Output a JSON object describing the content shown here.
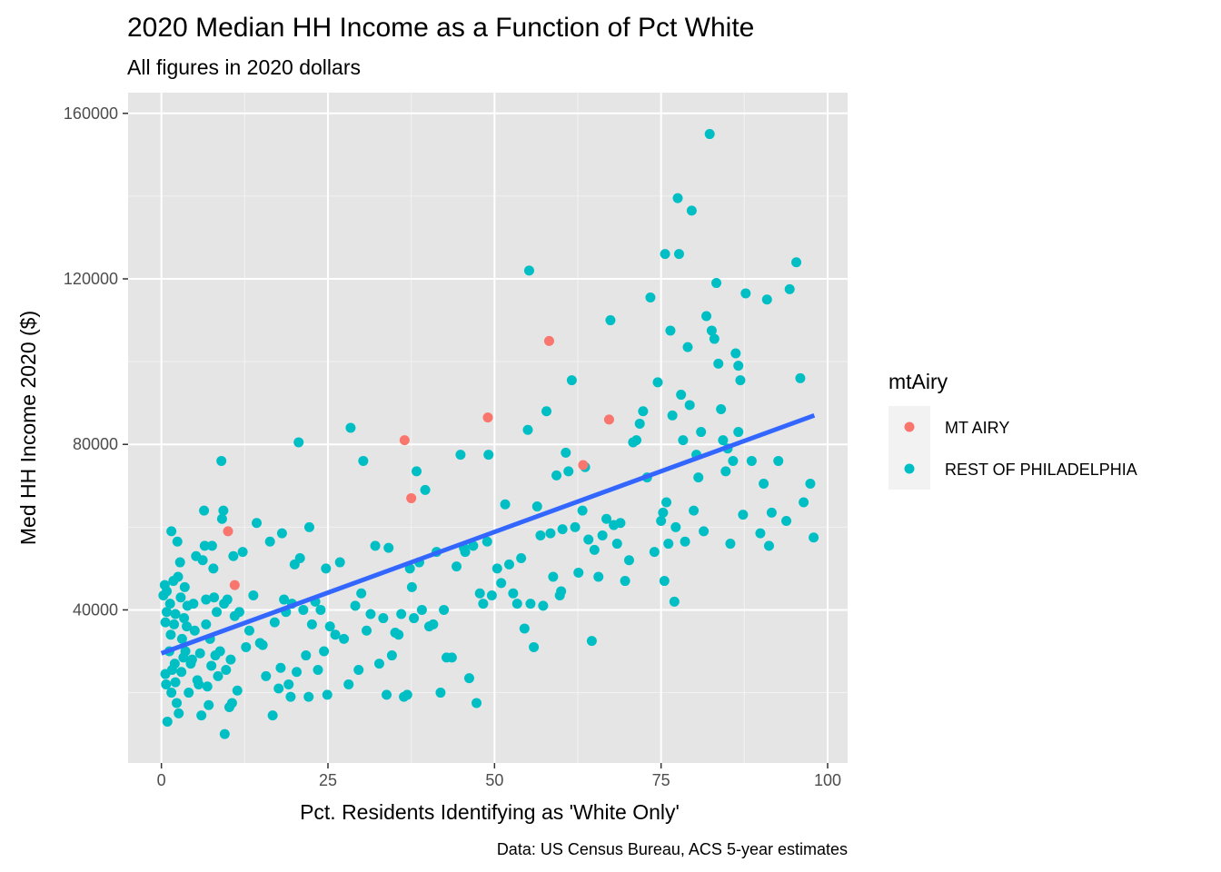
{
  "chart_data": {
    "type": "scatter",
    "title": "2020 Median HH Income as a Function of Pct White",
    "subtitle": "All figures in 2020 dollars",
    "xlabel": "Pct. Residents Identifying as 'White Only'",
    "ylabel": "Med HH Income 2020 ($)",
    "caption": "Data: US Census Bureau, ACS 5-year estimates",
    "xlim": [
      -5,
      103
    ],
    "ylim": [
      3000,
      165000
    ],
    "x_ticks": [
      0,
      25,
      50,
      75,
      100
    ],
    "x_tick_labels": [
      "0",
      "25",
      "50",
      "75",
      "100"
    ],
    "y_ticks": [
      40000,
      80000,
      120000,
      160000
    ],
    "y_tick_labels": [
      "40000",
      "80000",
      "120000",
      "160000"
    ],
    "grid": true,
    "panel_background": "#e5e5e5",
    "legend": {
      "title": "mtAiry",
      "position": "right",
      "entries": [
        {
          "label": "MT AIRY",
          "color": "#f8766d"
        },
        {
          "label": "REST OF PHILADELPHIA",
          "color": "#00bfc4"
        }
      ]
    },
    "trend_line": {
      "color": "#3366ff",
      "x": [
        0,
        98
      ],
      "y": [
        29500,
        87000
      ]
    },
    "series": [
      {
        "name": "MT AIRY",
        "color": "#f8766d",
        "points": [
          [
            10,
            59000
          ],
          [
            11,
            46000
          ],
          [
            36.5,
            81000
          ],
          [
            37.5,
            67000
          ],
          [
            49,
            86500
          ],
          [
            58.2,
            105000
          ],
          [
            63.3,
            75000
          ],
          [
            67.2,
            86000
          ]
        ]
      },
      {
        "name": "REST OF PHILADELPHIA",
        "color": "#00bfc4",
        "points": [
          [
            0.3,
            43500
          ],
          [
            0.5,
            46000
          ],
          [
            0.6,
            37000
          ],
          [
            0.8,
            39500
          ],
          [
            0.8,
            44500
          ],
          [
            0.6,
            24500
          ],
          [
            0.7,
            22000
          ],
          [
            0.9,
            13000
          ],
          [
            1.2,
            30000
          ],
          [
            1.3,
            41500
          ],
          [
            1.4,
            34000
          ],
          [
            1.5,
            20000
          ],
          [
            1.5,
            59000
          ],
          [
            1.6,
            25500
          ],
          [
            1.8,
            47000
          ],
          [
            1.9,
            36500
          ],
          [
            2.0,
            27000
          ],
          [
            2.1,
            39000
          ],
          [
            2.1,
            22500
          ],
          [
            2.3,
            17500
          ],
          [
            2.4,
            56500
          ],
          [
            2.6,
            15000
          ],
          [
            2.5,
            48000
          ],
          [
            2.8,
            51500
          ],
          [
            2.9,
            43000
          ],
          [
            3.0,
            25000
          ],
          [
            3.1,
            33000
          ],
          [
            3.3,
            28500
          ],
          [
            3.4,
            38000
          ],
          [
            3.6,
            30000
          ],
          [
            3.8,
            36000
          ],
          [
            3.9,
            41000
          ],
          [
            4.1,
            20000
          ],
          [
            4.4,
            27000
          ],
          [
            4.6,
            28000
          ],
          [
            4.8,
            41500
          ],
          [
            5.0,
            35000
          ],
          [
            5.2,
            53000
          ],
          [
            5.4,
            23000
          ],
          [
            5.6,
            22000
          ],
          [
            5.8,
            29500
          ],
          [
            6.0,
            14500
          ],
          [
            6.2,
            52000
          ],
          [
            6.4,
            64000
          ],
          [
            6.5,
            55500
          ],
          [
            6.7,
            42500
          ],
          [
            6.9,
            21500
          ],
          [
            7.1,
            17000
          ],
          [
            7.3,
            33000
          ],
          [
            7.5,
            26500
          ],
          [
            7.6,
            55500
          ],
          [
            7.8,
            50000
          ],
          [
            7.9,
            43000
          ],
          [
            8.1,
            29000
          ],
          [
            8.3,
            39500
          ],
          [
            8.5,
            24000
          ],
          [
            8.8,
            30000
          ],
          [
            9.0,
            76000
          ],
          [
            9.1,
            62000
          ],
          [
            9.3,
            64000
          ],
          [
            9.4,
            41500
          ],
          [
            9.5,
            10000
          ],
          [
            9.7,
            25500
          ],
          [
            9.9,
            42500
          ],
          [
            10.2,
            16500
          ],
          [
            10.4,
            28000
          ],
          [
            10.6,
            17500
          ],
          [
            10.8,
            53000
          ],
          [
            11.0,
            38500
          ],
          [
            11.4,
            20500
          ],
          [
            11.7,
            39500
          ],
          [
            12.2,
            54000
          ],
          [
            12.7,
            31000
          ],
          [
            13.2,
            35000
          ],
          [
            13.8,
            43500
          ],
          [
            14.3,
            61000
          ],
          [
            14.8,
            32000
          ],
          [
            15.2,
            31500
          ],
          [
            15.7,
            24000
          ],
          [
            16.3,
            56500
          ],
          [
            16.7,
            14500
          ],
          [
            17.0,
            37000
          ],
          [
            17.6,
            21000
          ],
          [
            17.9,
            26000
          ],
          [
            18.1,
            58500
          ],
          [
            18.4,
            42500
          ],
          [
            18.7,
            39500
          ],
          [
            19.1,
            22000
          ],
          [
            19.4,
            19000
          ],
          [
            19.6,
            41500
          ],
          [
            20.0,
            51000
          ],
          [
            20.3,
            25000
          ],
          [
            20.6,
            80500
          ],
          [
            20.8,
            52500
          ],
          [
            21.3,
            40000
          ],
          [
            21.7,
            29000
          ],
          [
            22.1,
            19000
          ],
          [
            22.2,
            60000
          ],
          [
            22.6,
            36500
          ],
          [
            23.1,
            42000
          ],
          [
            23.5,
            25500
          ],
          [
            23.9,
            40000
          ],
          [
            24.4,
            30000
          ],
          [
            24.7,
            50000
          ],
          [
            24.9,
            19500
          ],
          [
            25.3,
            36000
          ],
          [
            26.1,
            34000
          ],
          [
            26.8,
            51500
          ],
          [
            27.4,
            33000
          ],
          [
            28.1,
            22000
          ],
          [
            28.4,
            84000
          ],
          [
            29.1,
            41000
          ],
          [
            29.6,
            25500
          ],
          [
            30.3,
            76000
          ],
          [
            30.8,
            35000
          ],
          [
            31.4,
            39000
          ],
          [
            32.1,
            55500
          ],
          [
            32.7,
            27000
          ],
          [
            33.3,
            38000
          ],
          [
            33.8,
            19500
          ],
          [
            34.1,
            55000
          ],
          [
            34.6,
            29000
          ],
          [
            35.1,
            34500
          ],
          [
            35.6,
            34000
          ],
          [
            36.0,
            39000
          ],
          [
            36.4,
            19000
          ],
          [
            36.9,
            19500
          ],
          [
            37.3,
            50000
          ],
          [
            37.6,
            45500
          ],
          [
            37.9,
            38000
          ],
          [
            38.3,
            73500
          ],
          [
            38.7,
            51500
          ],
          [
            39.1,
            40000
          ],
          [
            39.6,
            69000
          ],
          [
            40.2,
            36000
          ],
          [
            40.8,
            36500
          ],
          [
            41.3,
            54000
          ],
          [
            41.9,
            20000
          ],
          [
            42.4,
            40000
          ],
          [
            42.8,
            28500
          ],
          [
            43.6,
            28500
          ],
          [
            44.3,
            50500
          ],
          [
            44.9,
            77500
          ],
          [
            45.6,
            54000
          ],
          [
            46.2,
            23500
          ],
          [
            46.8,
            55500
          ],
          [
            47.3,
            17500
          ],
          [
            47.8,
            44000
          ],
          [
            48.3,
            41500
          ],
          [
            48.9,
            56500
          ],
          [
            49.1,
            77500
          ],
          [
            49.6,
            43500
          ],
          [
            50.4,
            50000
          ],
          [
            51.0,
            46500
          ],
          [
            51.6,
            65500
          ],
          [
            52.2,
            51000
          ],
          [
            52.8,
            44000
          ],
          [
            53.4,
            41500
          ],
          [
            54.0,
            52500
          ],
          [
            54.5,
            35500
          ],
          [
            55.0,
            83500
          ],
          [
            55.4,
            41500
          ],
          [
            55.9,
            31000
          ],
          [
            56.4,
            65000
          ],
          [
            56.9,
            58000
          ],
          [
            57.3,
            41000
          ],
          [
            57.8,
            88000
          ],
          [
            58.4,
            58500
          ],
          [
            58.8,
            48000
          ],
          [
            59.3,
            72500
          ],
          [
            59.8,
            43500
          ],
          [
            60.2,
            59500
          ],
          [
            60.7,
            78000
          ],
          [
            61.1,
            73500
          ],
          [
            61.6,
            95500
          ],
          [
            62.1,
            60000
          ],
          [
            62.6,
            49000
          ],
          [
            63.2,
            64000
          ],
          [
            63.6,
            74500
          ],
          [
            64.1,
            57000
          ],
          [
            64.6,
            32500
          ],
          [
            65.0,
            54500
          ],
          [
            65.6,
            48000
          ],
          [
            66.2,
            58000
          ],
          [
            66.8,
            62000
          ],
          [
            67.4,
            110000
          ],
          [
            67.9,
            60500
          ],
          [
            68.4,
            56000
          ],
          [
            68.9,
            61000
          ],
          [
            69.6,
            47000
          ],
          [
            70.2,
            52000
          ],
          [
            70.8,
            80500
          ],
          [
            71.3,
            81000
          ],
          [
            71.8,
            85000
          ],
          [
            72.3,
            88000
          ],
          [
            72.9,
            72000
          ],
          [
            73.4,
            115500
          ],
          [
            74.0,
            54000
          ],
          [
            74.5,
            95000
          ],
          [
            75.0,
            61500
          ],
          [
            75.3,
            63500
          ],
          [
            75.5,
            47000
          ],
          [
            75.8,
            66000
          ],
          [
            76.1,
            56000
          ],
          [
            76.4,
            107500
          ],
          [
            76.7,
            87000
          ],
          [
            77.0,
            42000
          ],
          [
            77.2,
            60000
          ],
          [
            77.5,
            139500
          ],
          [
            77.7,
            126000
          ],
          [
            78.0,
            92000
          ],
          [
            78.3,
            81000
          ],
          [
            78.6,
            56500
          ],
          [
            79.0,
            103500
          ],
          [
            79.3,
            89500
          ],
          [
            79.6,
            136500
          ],
          [
            79.9,
            64000
          ],
          [
            80.3,
            77500
          ],
          [
            80.6,
            72000
          ],
          [
            81.0,
            83000
          ],
          [
            81.4,
            59000
          ],
          [
            81.8,
            111000
          ],
          [
            82.3,
            155000
          ],
          [
            82.6,
            107500
          ],
          [
            83.0,
            105500
          ],
          [
            83.3,
            119000
          ],
          [
            83.6,
            99500
          ],
          [
            84.0,
            88500
          ],
          [
            84.3,
            81000
          ],
          [
            84.7,
            73500
          ],
          [
            85.0,
            79000
          ],
          [
            85.4,
            56000
          ],
          [
            85.8,
            76000
          ],
          [
            86.2,
            102000
          ],
          [
            86.6,
            83000
          ],
          [
            86.9,
            95500
          ],
          [
            87.3,
            63000
          ],
          [
            87.7,
            116500
          ],
          [
            88.6,
            76000
          ],
          [
            89.9,
            58500
          ],
          [
            90.4,
            70500
          ],
          [
            90.9,
            115000
          ],
          [
            91.2,
            55500
          ],
          [
            91.6,
            63500
          ],
          [
            92.6,
            76000
          ],
          [
            93.8,
            61500
          ],
          [
            94.3,
            117500
          ],
          [
            95.3,
            124000
          ],
          [
            95.9,
            96000
          ],
          [
            96.4,
            66000
          ],
          [
            97.4,
            70500
          ],
          [
            97.9,
            57500
          ],
          [
            6.7,
            36500
          ],
          [
            45.4,
            55000
          ],
          [
            60.0,
            44500
          ],
          [
            3.5,
            45500
          ],
          [
            55.2,
            122000
          ],
          [
            75.6,
            126000
          ],
          [
            86.6,
            99000
          ],
          [
            30.0,
            44000
          ]
        ]
      }
    ]
  }
}
